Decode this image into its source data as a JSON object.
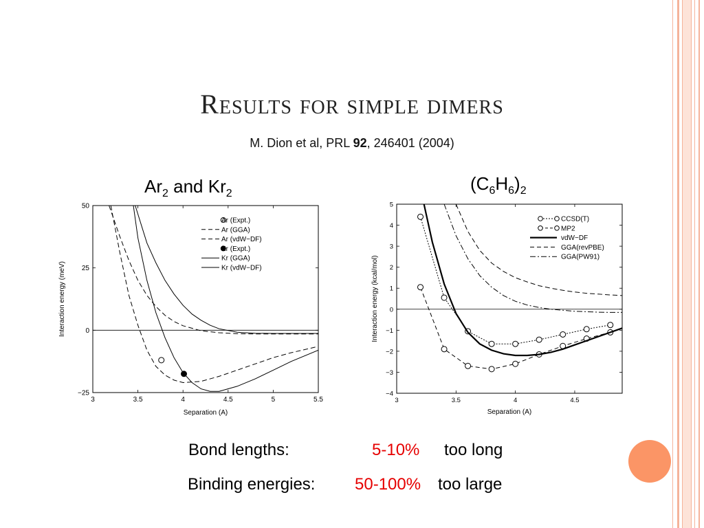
{
  "slide": {
    "title": "Results for simple dimers",
    "citation_prefix": "M. Dion et al, PRL ",
    "citation_volume": "92",
    "citation_suffix": ", 246401 (2004)"
  },
  "left_heading": {
    "pre": "Ar",
    "sub1": "2",
    "mid": " and Kr",
    "sub2": "2"
  },
  "right_heading": {
    "pre": "(C",
    "sub1": "6",
    "mid": "H",
    "sub2": "6",
    "post": ")",
    "sub3": "2"
  },
  "results": {
    "bond_label": "Bond lengths:",
    "bond_value": "5-10%",
    "bond_suffix": "too long",
    "binding_label": "Binding energies:",
    "binding_value": "50-100%",
    "binding_suffix": "too large"
  },
  "colors": {
    "accent_red": "#e60000",
    "orange_circle": "#fb9566",
    "frame": "#f5b39a"
  },
  "chart_data": [
    {
      "type": "line",
      "xlabel": "Separation (A)",
      "ylabel": "Interaction energy (meV)",
      "xlim": [
        3,
        5.5
      ],
      "ylim": [
        -25,
        50
      ],
      "xticks": [
        "3",
        "3.5",
        "4",
        "4.5",
        "5",
        "5.5"
      ],
      "yticks": [
        "50",
        "25",
        "0",
        "−25"
      ],
      "legend_position": "top-right",
      "series": [
        {
          "name": "Ar (Expt.)",
          "style": "open-marker",
          "x": [
            3.76
          ],
          "y": [
            -12
          ]
        },
        {
          "name": "Ar  (GGA)",
          "style": "dashed",
          "x": [
            3.18,
            3.3,
            3.4,
            3.5,
            3.6,
            3.7,
            3.8,
            3.9,
            4.0,
            4.2,
            4.4,
            4.6,
            4.8,
            5.0,
            5.2,
            5.5
          ],
          "y": [
            50,
            37.5,
            28,
            20,
            14,
            9.5,
            6,
            3.5,
            1.8,
            -0.2,
            -1,
            -1.4,
            -1.5,
            -1.5,
            -1.5,
            -1.5
          ]
        },
        {
          "name": "Ar (vdW−DF)",
          "style": "dashed",
          "x": [
            3.2,
            3.3,
            3.4,
            3.5,
            3.6,
            3.7,
            3.8,
            3.9,
            4.0,
            4.2,
            4.4,
            4.6,
            4.8,
            5.0,
            5.2,
            5.5
          ],
          "y": [
            50,
            31,
            14,
            2,
            -8,
            -14.5,
            -18,
            -20,
            -21,
            -20.5,
            -18.5,
            -16,
            -13.5,
            -11,
            -9,
            -6.5
          ]
        },
        {
          "name": "Kr (Expt.)",
          "style": "filled-marker",
          "x": [
            4.01
          ],
          "y": [
            -17.5
          ]
        },
        {
          "name": "Kr (GGA)",
          "style": "solid",
          "x": [
            3.47,
            3.6,
            3.7,
            3.8,
            3.9,
            4.0,
            4.1,
            4.2,
            4.3,
            4.4,
            4.6,
            4.8,
            5.0,
            5.2,
            5.5
          ],
          "y": [
            50,
            35,
            27,
            20,
            14.5,
            10,
            6.5,
            4,
            2,
            0.6,
            -0.8,
            -1.2,
            -1.3,
            -1.3,
            -1.3
          ]
        },
        {
          "name": "Kr (vdW−DF)",
          "style": "solid",
          "x": [
            3.45,
            3.5,
            3.6,
            3.7,
            3.8,
            3.9,
            4.0,
            4.1,
            4.2,
            4.3,
            4.4,
            4.6,
            4.8,
            5.0,
            5.2,
            5.5
          ],
          "y": [
            50,
            37,
            20,
            7,
            -3,
            -11,
            -17,
            -21,
            -23.5,
            -24.5,
            -24.5,
            -22.5,
            -19.5,
            -16,
            -12.5,
            -8
          ]
        }
      ]
    },
    {
      "type": "line",
      "xlabel": "Separation (A)",
      "ylabel": "Interaction energy (kcal/mol)",
      "xlim": [
        3,
        4.9
      ],
      "ylim": [
        -4,
        5
      ],
      "xticks": [
        "3",
        "3.5",
        "4",
        "4.5"
      ],
      "yticks": [
        "5",
        "4",
        "3",
        "2",
        "1",
        "0",
        "−1",
        "−2",
        "−3",
        "−4"
      ],
      "legend_position": "top-right",
      "series": [
        {
          "name": "CCSD(T)",
          "style": "dotted-marker",
          "x": [
            3.2,
            3.4,
            3.6,
            3.8,
            4.0,
            4.2,
            4.4,
            4.6,
            4.8
          ],
          "y": [
            4.4,
            0.55,
            -1.05,
            -1.65,
            -1.65,
            -1.45,
            -1.2,
            -0.95,
            -0.75
          ]
        },
        {
          "name": "MP2",
          "style": "dashed-marker",
          "x": [
            3.2,
            3.4,
            3.6,
            3.8,
            4.0,
            4.2,
            4.4,
            4.6,
            4.8
          ],
          "y": [
            1.05,
            -1.9,
            -2.7,
            -2.85,
            -2.6,
            -2.15,
            -1.75,
            -1.4,
            -1.1
          ]
        },
        {
          "name": "vdW−DF",
          "style": "bold",
          "x": [
            3.23,
            3.3,
            3.4,
            3.5,
            3.6,
            3.7,
            3.8,
            3.9,
            4.0,
            4.1,
            4.2,
            4.3,
            4.4,
            4.5,
            4.6,
            4.7,
            4.8,
            4.9
          ],
          "y": [
            5,
            3.2,
            1.2,
            -0.2,
            -1.1,
            -1.65,
            -1.95,
            -2.12,
            -2.2,
            -2.2,
            -2.15,
            -2.05,
            -1.9,
            -1.7,
            -1.5,
            -1.3,
            -1.1,
            -0.9
          ]
        },
        {
          "name": "GGA(revPBE)",
          "style": "dashed",
          "x": [
            3.5,
            3.6,
            3.7,
            3.8,
            3.9,
            4.0,
            4.1,
            4.2,
            4.3,
            4.4,
            4.5,
            4.6,
            4.7,
            4.8,
            4.9
          ],
          "y": [
            5,
            3.7,
            2.8,
            2.2,
            1.8,
            1.5,
            1.3,
            1.12,
            1.0,
            0.9,
            0.82,
            0.76,
            0.72,
            0.68,
            0.65
          ]
        },
        {
          "name": "GGA(PW91)",
          "style": "dashdot",
          "x": [
            3.4,
            3.5,
            3.6,
            3.7,
            3.8,
            3.9,
            4.0,
            4.1,
            4.2,
            4.3,
            4.4,
            4.5,
            4.6,
            4.7,
            4.8,
            4.9
          ],
          "y": [
            5,
            3.5,
            2.4,
            1.6,
            1.05,
            0.65,
            0.38,
            0.2,
            0.08,
            0.0,
            -0.05,
            -0.1,
            -0.12,
            -0.14,
            -0.15,
            -0.15
          ]
        }
      ]
    }
  ]
}
